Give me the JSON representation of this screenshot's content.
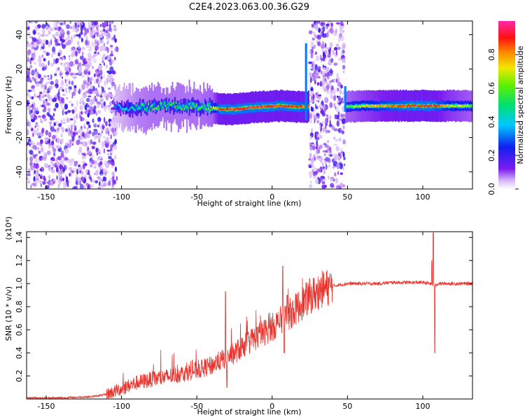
{
  "title": "C2E4.2023.063.00.36.G29",
  "colors": {
    "snr_line": "#e8322b",
    "spectral_core": "#ff1e1e",
    "spectral_mid": "#22d3a0",
    "spectral_low": "#6a1bd8",
    "spectral_faint": "#c9a8f0"
  },
  "chart_data": [
    {
      "type": "heatmap",
      "title": "C2E4.2023.063.00.36.G29",
      "xlabel": "Height of straight line (km)",
      "ylabel": "Frequency (Hz)",
      "xlim": [
        -163,
        133
      ],
      "ylim": [
        -50,
        48
      ],
      "x_ticks": [
        -150,
        -100,
        -50,
        0,
        50,
        100
      ],
      "y_ticks": [
        -40,
        -20,
        0,
        20,
        40
      ],
      "colorbar": {
        "label": "Normalized spectral amplitude",
        "range": [
          0,
          1
        ],
        "ticks": [
          "0.0",
          "0.2",
          "0.4",
          "0.6",
          "0.8"
        ],
        "colormap": "rainbow"
      },
      "noise_bands_km": [
        [
          -163,
          -103
        ],
        [
          25,
          48
        ]
      ],
      "ridge": [
        {
          "x": -105,
          "freq": -2.5,
          "amp": 0.3
        },
        {
          "x": -90,
          "freq": -3,
          "amp": 0.5
        },
        {
          "x": -80,
          "freq": -2,
          "amp": 0.55
        },
        {
          "x": -65,
          "freq": -1.5,
          "amp": 0.55
        },
        {
          "x": -50,
          "freq": -2,
          "amp": 0.55
        },
        {
          "x": -40,
          "freq": -2.5,
          "amp": 0.6
        },
        {
          "x": -35,
          "freq": -3.5,
          "amp": 0.9
        },
        {
          "x": -25,
          "freq": -3.5,
          "amp": 0.9
        },
        {
          "x": -15,
          "freq": -2.5,
          "amp": 0.9
        },
        {
          "x": -5,
          "freq": -2,
          "amp": 0.9
        },
        {
          "x": 5,
          "freq": -1.5,
          "amp": 0.9
        },
        {
          "x": 15,
          "freq": -2,
          "amp": 0.9
        },
        {
          "x": 22,
          "freq": -2,
          "amp": 0.85
        },
        {
          "x": 50,
          "freq": -2,
          "amp": 0.6
        },
        {
          "x": 60,
          "freq": -1.5,
          "amp": 0.7
        },
        {
          "x": 75,
          "freq": -1.5,
          "amp": 0.8
        },
        {
          "x": 90,
          "freq": -1.5,
          "amp": 0.9
        },
        {
          "x": 105,
          "freq": -1.5,
          "amp": 0.9
        },
        {
          "x": 115,
          "freq": -1.5,
          "amp": 0.75
        },
        {
          "x": 133,
          "freq": -1.5,
          "amp": 0.6
        }
      ]
    },
    {
      "type": "line",
      "xlabel": "Height of straight line (km)",
      "ylabel": "SNR (10 * v/v)",
      "y_scale_label": "(x10⁴)",
      "xlim": [
        -163,
        133
      ],
      "ylim": [
        0,
        1.45
      ],
      "x_ticks": [
        -150,
        -100,
        -50,
        0,
        50,
        100
      ],
      "y_ticks": [
        0.2,
        0.4,
        0.6,
        0.8,
        1.0,
        1.2,
        1.4
      ],
      "y_tick_labels": [
        "0.2",
        "0.4",
        "0.6",
        "0.8",
        "1.0",
        "1.2",
        "1.4"
      ],
      "series": [
        {
          "x": [
            -163,
            -140,
            -120,
            -110,
            -100,
            -90,
            -80,
            -70,
            -60,
            -50,
            -45,
            -40,
            -35,
            -30,
            -25,
            -20,
            -15,
            -10,
            -5,
            0,
            5,
            10,
            15,
            20,
            25,
            30,
            35,
            40,
            45,
            50,
            60,
            70,
            80,
            90,
            100,
            105,
            108,
            110,
            115,
            120,
            133
          ],
          "y": [
            0.01,
            0.01,
            0.02,
            0.04,
            0.09,
            0.14,
            0.17,
            0.19,
            0.22,
            0.25,
            0.27,
            0.29,
            0.33,
            0.36,
            0.4,
            0.45,
            0.5,
            0.54,
            0.58,
            0.62,
            0.67,
            0.72,
            0.77,
            0.83,
            0.89,
            0.93,
            0.96,
            0.98,
            0.99,
            1.0,
            1.0,
            1.0,
            1.01,
            1.01,
            1.01,
            1.0,
            0.98,
            1.0,
            1.0,
            1.0,
            1.0
          ]
        }
      ],
      "spikes": [
        {
          "x": -31,
          "y": 0.93
        },
        {
          "x": -30,
          "y": 0.1
        },
        {
          "x": 7,
          "y": 1.15
        },
        {
          "x": 8,
          "y": 0.4
        },
        {
          "x": 10,
          "y": 0.9
        },
        {
          "x": 107,
          "y": 1.44
        },
        {
          "x": 108,
          "y": 0.4
        },
        {
          "x": 106,
          "y": 1.2
        }
      ]
    }
  ]
}
